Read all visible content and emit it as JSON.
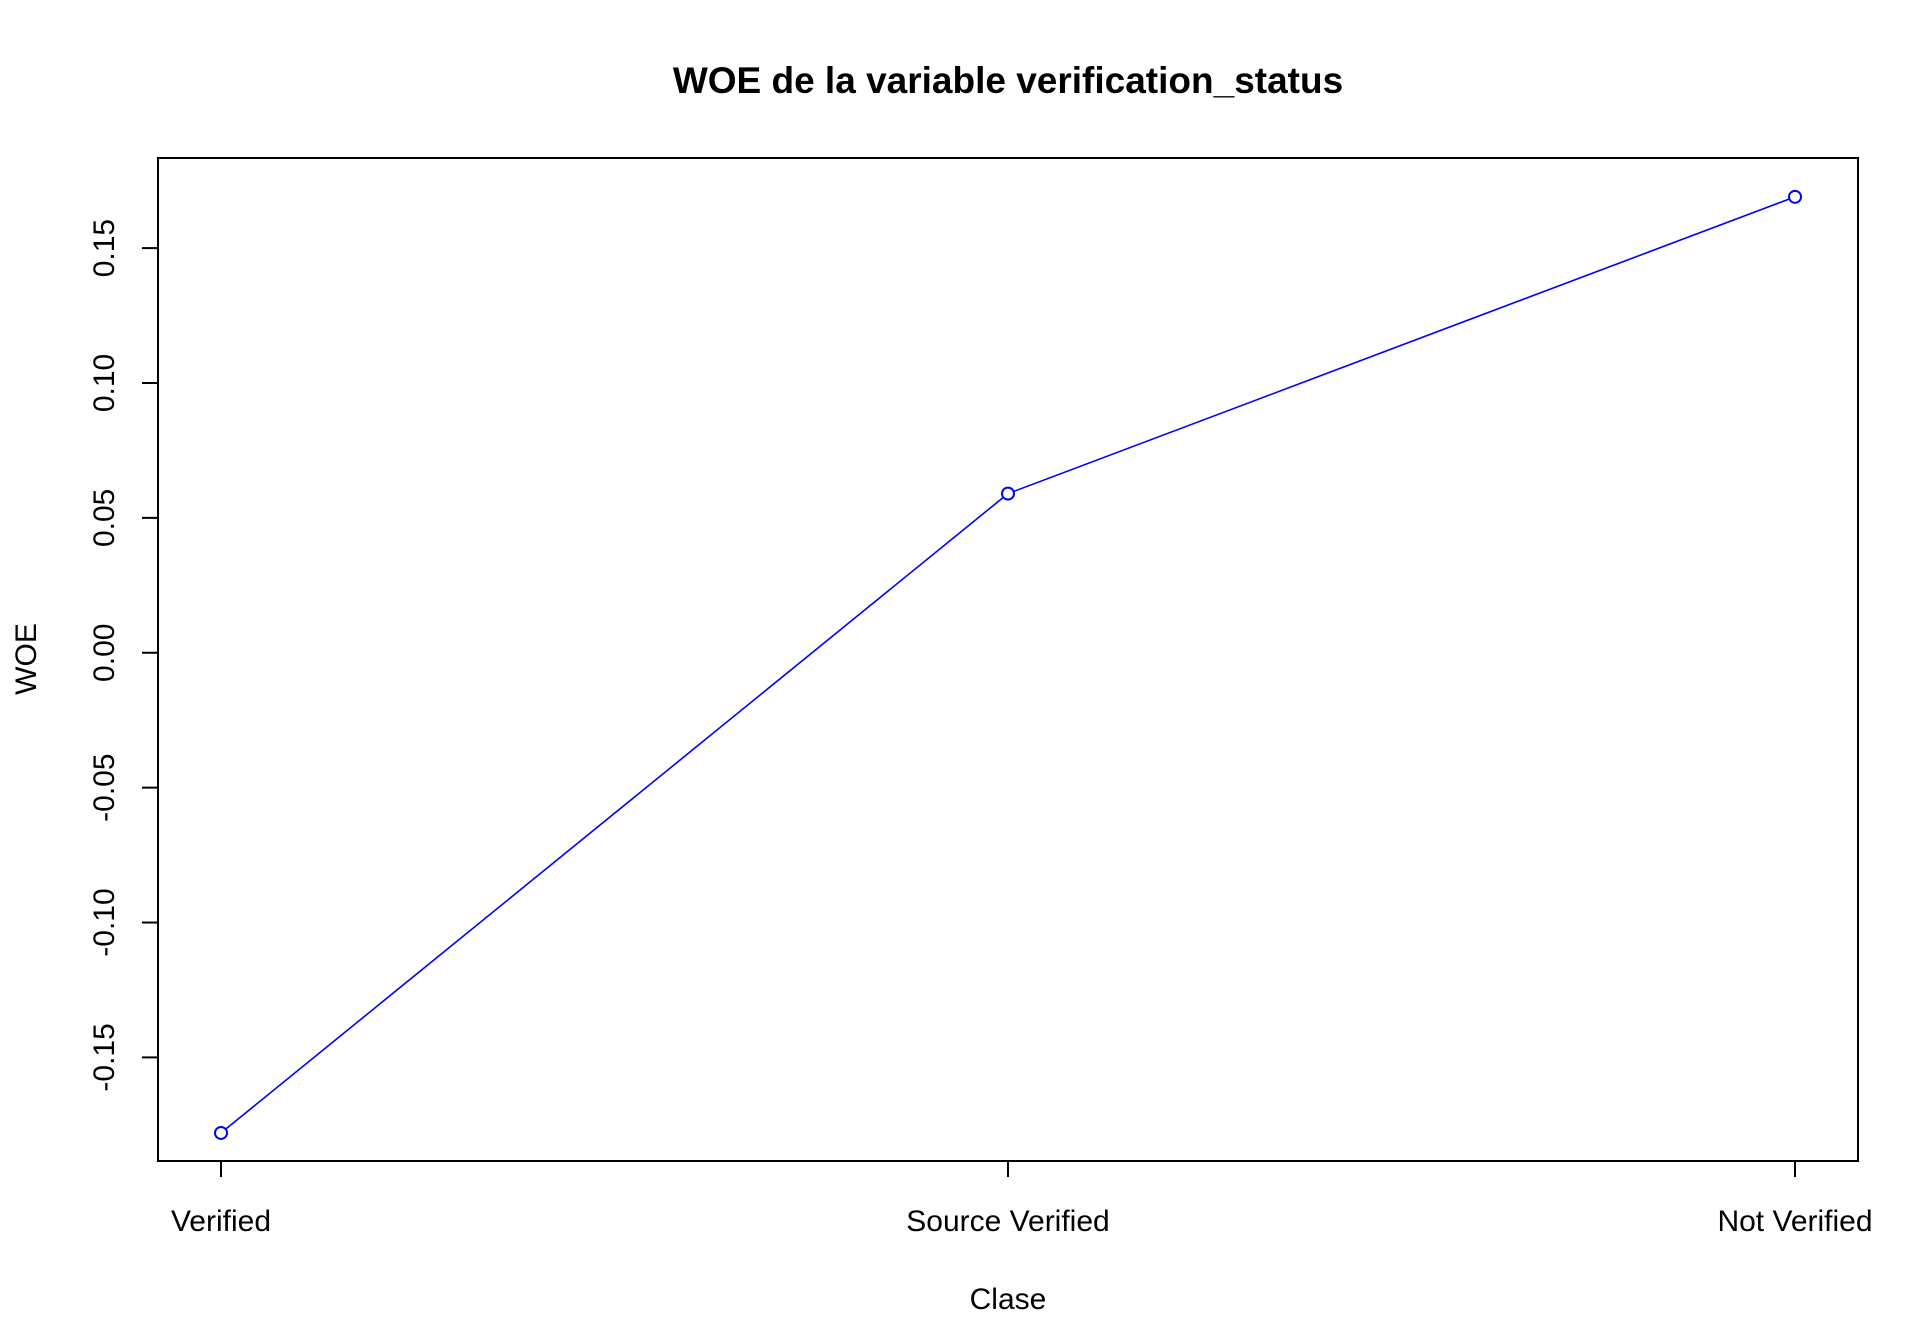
{
  "chart_data": {
    "type": "line",
    "title": "WOE de la variable verification_status",
    "xlabel": "Clase",
    "ylabel": "WOE",
    "categories": [
      "Verified",
      "Source Verified",
      "Not Verified"
    ],
    "series": [
      {
        "values": [
          -0.178,
          0.059,
          0.169
        ]
      }
    ],
    "y_ticks": [
      -0.15,
      -0.1,
      -0.05,
      0.0,
      0.05,
      0.1,
      0.15
    ],
    "y_tick_labels": [
      "-0.15",
      "-0.10",
      "-0.05",
      "0.00",
      "0.05",
      "0.10",
      "0.15"
    ],
    "ylim": [
      -0.1884,
      0.1834
    ],
    "grid": false,
    "marker": "open-circle",
    "line_color": "#0000ff"
  }
}
